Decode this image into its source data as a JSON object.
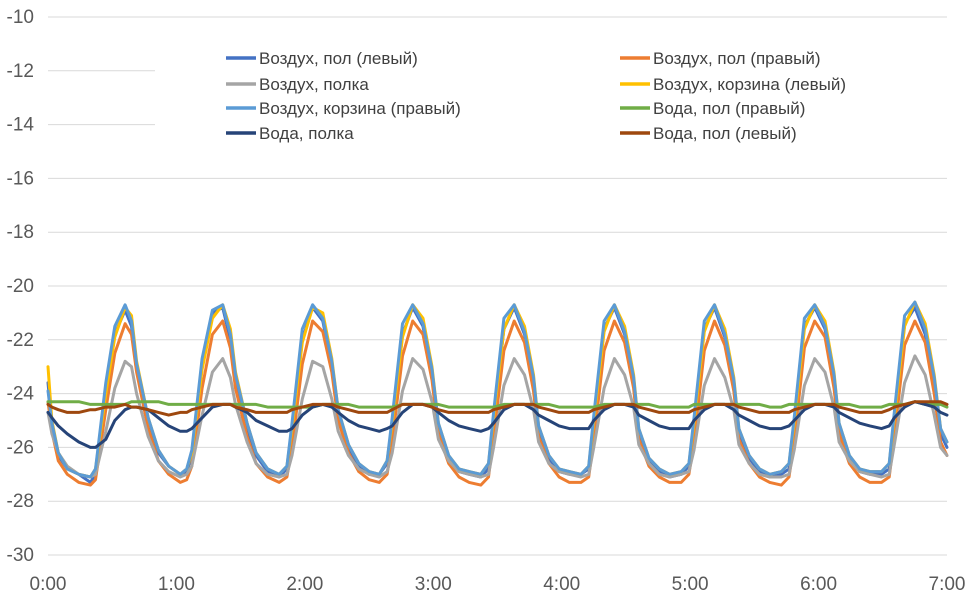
{
  "chart_data": {
    "type": "line",
    "title": "",
    "xlabel": "",
    "ylabel": "",
    "xlim": [
      0,
      7
    ],
    "ylim": [
      -30,
      -10
    ],
    "x_ticks": [
      {
        "value": 0,
        "label": "0:00"
      },
      {
        "value": 1,
        "label": "1:00"
      },
      {
        "value": 2,
        "label": "2:00"
      },
      {
        "value": 3,
        "label": "3:00"
      },
      {
        "value": 4,
        "label": "4:00"
      },
      {
        "value": 5,
        "label": "5:00"
      },
      {
        "value": 6,
        "label": "6:00"
      },
      {
        "value": 7,
        "label": "7:00"
      }
    ],
    "y_ticks": [
      {
        "value": -10,
        "label": "-10"
      },
      {
        "value": -12,
        "label": "-12"
      },
      {
        "value": -14,
        "label": "-14"
      },
      {
        "value": -16,
        "label": "-16"
      },
      {
        "value": -18,
        "label": "-18"
      },
      {
        "value": -20,
        "label": "-20"
      },
      {
        "value": -22,
        "label": "-22"
      },
      {
        "value": -24,
        "label": "-24"
      },
      {
        "value": -26,
        "label": "-26"
      },
      {
        "value": -28,
        "label": "-28"
      },
      {
        "value": -30,
        "label": "-30"
      }
    ],
    "grid": "horizontal",
    "legend_position": "top",
    "x": [
      0.0,
      0.03,
      0.08,
      0.15,
      0.24,
      0.33,
      0.37,
      0.45,
      0.52,
      0.6,
      0.65,
      0.69,
      0.78,
      0.86,
      0.94,
      1.03,
      1.08,
      1.12,
      1.2,
      1.28,
      1.36,
      1.42,
      1.46,
      1.55,
      1.62,
      1.71,
      1.8,
      1.86,
      1.9,
      1.98,
      2.06,
      2.14,
      2.21,
      2.26,
      2.34,
      2.42,
      2.5,
      2.58,
      2.64,
      2.68,
      2.76,
      2.84,
      2.92,
      2.99,
      3.04,
      3.12,
      3.2,
      3.28,
      3.37,
      3.43,
      3.47,
      3.55,
      3.63,
      3.71,
      3.78,
      3.82,
      3.9,
      3.98,
      4.06,
      4.15,
      4.21,
      4.25,
      4.33,
      4.41,
      4.49,
      4.56,
      4.6,
      4.68,
      4.76,
      4.84,
      4.93,
      4.99,
      5.03,
      5.11,
      5.19,
      5.27,
      5.34,
      5.38,
      5.46,
      5.54,
      5.62,
      5.71,
      5.77,
      5.81,
      5.89,
      5.97,
      6.05,
      6.12,
      6.16,
      6.24,
      6.32,
      6.4,
      6.49,
      6.55,
      6.59,
      6.67,
      6.75,
      6.83,
      6.9,
      6.95,
      7.0
    ],
    "series": [
      {
        "name": "Воздух, пол (левый)",
        "color": "#4472C4",
        "values": [
          -23.6,
          -25.2,
          -26.3,
          -26.8,
          -27.0,
          -27.3,
          -27.0,
          -24.0,
          -21.8,
          -20.9,
          -21.5,
          -23.0,
          -25.0,
          -26.2,
          -26.7,
          -27.0,
          -26.9,
          -26.3,
          -23.0,
          -21.0,
          -20.8,
          -22.0,
          -23.5,
          -25.3,
          -26.3,
          -26.9,
          -27.1,
          -26.8,
          -25.4,
          -22.0,
          -20.8,
          -21.3,
          -23.0,
          -24.8,
          -26.0,
          -26.7,
          -27.0,
          -27.0,
          -26.6,
          -25.2,
          -21.8,
          -20.8,
          -21.5,
          -23.3,
          -25.3,
          -26.4,
          -26.9,
          -27.0,
          -27.1,
          -26.8,
          -25.0,
          -21.6,
          -20.8,
          -21.8,
          -23.6,
          -25.4,
          -26.4,
          -26.9,
          -27.0,
          -27.0,
          -26.8,
          -25.1,
          -21.6,
          -20.8,
          -21.8,
          -23.5,
          -25.5,
          -26.5,
          -26.9,
          -27.1,
          -27.0,
          -26.7,
          -25.2,
          -21.6,
          -20.8,
          -21.9,
          -23.6,
          -25.5,
          -26.4,
          -26.9,
          -27.1,
          -27.0,
          -26.8,
          -25.2,
          -21.5,
          -20.8,
          -21.6,
          -23.5,
          -25.3,
          -26.4,
          -26.9,
          -27.0,
          -27.0,
          -26.8,
          -25.0,
          -21.4,
          -20.8,
          -21.8,
          -23.7,
          -25.5,
          -26.0
        ]
      },
      {
        "name": "Воздух, пол (правый)",
        "color": "#ED7D31",
        "values": [
          -24.3,
          -25.4,
          -26.5,
          -27.0,
          -27.3,
          -27.4,
          -27.2,
          -24.6,
          -22.5,
          -21.4,
          -21.8,
          -23.2,
          -25.3,
          -26.5,
          -27.0,
          -27.3,
          -27.2,
          -26.7,
          -23.8,
          -21.8,
          -21.3,
          -22.3,
          -23.8,
          -25.6,
          -26.6,
          -27.1,
          -27.3,
          -27.1,
          -26.0,
          -22.9,
          -21.3,
          -21.7,
          -23.2,
          -25.0,
          -26.2,
          -26.9,
          -27.2,
          -27.3,
          -27.0,
          -25.8,
          -22.6,
          -21.3,
          -21.8,
          -23.5,
          -25.5,
          -26.6,
          -27.1,
          -27.3,
          -27.4,
          -27.1,
          -25.6,
          -22.4,
          -21.3,
          -22.1,
          -23.9,
          -25.6,
          -26.6,
          -27.1,
          -27.3,
          -27.3,
          -27.1,
          -25.7,
          -22.4,
          -21.3,
          -22.1,
          -23.8,
          -25.7,
          -26.7,
          -27.1,
          -27.3,
          -27.3,
          -27.0,
          -25.8,
          -22.4,
          -21.3,
          -22.2,
          -23.9,
          -25.7,
          -26.6,
          -27.1,
          -27.3,
          -27.4,
          -27.1,
          -25.8,
          -22.3,
          -21.3,
          -21.9,
          -23.8,
          -25.5,
          -26.6,
          -27.1,
          -27.3,
          -27.3,
          -27.1,
          -25.6,
          -22.2,
          -21.3,
          -22.1,
          -24.0,
          -25.8,
          -26.3
        ]
      },
      {
        "name": "Воздух, полка",
        "color": "#A5A5A5",
        "values": [
          -24.7,
          -25.5,
          -26.2,
          -26.7,
          -27.0,
          -27.1,
          -27.0,
          -25.4,
          -23.8,
          -22.8,
          -23.0,
          -24.0,
          -25.6,
          -26.5,
          -26.9,
          -27.1,
          -27.0,
          -26.7,
          -24.8,
          -23.2,
          -22.7,
          -23.4,
          -24.4,
          -25.8,
          -26.6,
          -27.0,
          -27.1,
          -27.0,
          -26.3,
          -24.2,
          -22.8,
          -23.0,
          -24.2,
          -25.4,
          -26.3,
          -26.8,
          -27.0,
          -27.1,
          -26.9,
          -26.2,
          -23.9,
          -22.7,
          -23.1,
          -24.3,
          -25.7,
          -26.5,
          -26.9,
          -27.0,
          -27.1,
          -27.0,
          -26.0,
          -23.7,
          -22.7,
          -23.3,
          -24.6,
          -25.8,
          -26.6,
          -26.9,
          -27.0,
          -27.1,
          -27.0,
          -26.0,
          -23.8,
          -22.7,
          -23.3,
          -24.5,
          -25.9,
          -26.6,
          -27.0,
          -27.1,
          -27.0,
          -26.9,
          -26.1,
          -23.7,
          -22.7,
          -23.4,
          -24.6,
          -25.9,
          -26.6,
          -27.0,
          -27.1,
          -27.1,
          -27.0,
          -26.1,
          -23.7,
          -22.7,
          -23.2,
          -24.5,
          -25.8,
          -26.5,
          -26.9,
          -27.0,
          -27.1,
          -27.0,
          -25.9,
          -23.6,
          -22.6,
          -23.3,
          -24.8,
          -26.0,
          -26.3
        ]
      },
      {
        "name": "Воздух, корзина (левый)",
        "color": "#FFC000",
        "values": [
          -23.0,
          -25.0,
          -26.2,
          -26.8,
          -27.0,
          -27.1,
          -26.8,
          -24.0,
          -21.9,
          -20.8,
          -21.1,
          -22.8,
          -24.9,
          -26.1,
          -26.7,
          -27.0,
          -26.8,
          -26.2,
          -23.1,
          -21.2,
          -20.7,
          -21.6,
          -23.2,
          -25.1,
          -26.2,
          -26.8,
          -27.0,
          -26.7,
          -25.3,
          -22.1,
          -20.8,
          -21.0,
          -22.7,
          -24.6,
          -25.9,
          -26.6,
          -26.9,
          -27.0,
          -26.5,
          -25.1,
          -21.9,
          -20.7,
          -21.2,
          -23.0,
          -25.1,
          -26.3,
          -26.8,
          -26.9,
          -27.0,
          -26.6,
          -24.9,
          -21.6,
          -20.7,
          -21.5,
          -23.3,
          -25.2,
          -26.3,
          -26.8,
          -26.9,
          -27.0,
          -26.7,
          -25.0,
          -21.7,
          -20.7,
          -21.5,
          -23.3,
          -25.3,
          -26.4,
          -26.8,
          -27.0,
          -26.9,
          -26.6,
          -25.1,
          -21.7,
          -20.7,
          -21.6,
          -23.4,
          -25.3,
          -26.3,
          -26.8,
          -27.0,
          -26.9,
          -26.6,
          -25.1,
          -21.6,
          -20.7,
          -21.3,
          -23.2,
          -25.1,
          -26.3,
          -26.8,
          -26.9,
          -26.9,
          -26.6,
          -24.9,
          -21.5,
          -20.6,
          -21.4,
          -23.3,
          -25.3,
          -25.8
        ]
      },
      {
        "name": "Воздух, корзина (правый)",
        "color": "#5B9BD5",
        "values": [
          -23.9,
          -25.1,
          -26.2,
          -26.8,
          -27.0,
          -27.1,
          -26.8,
          -23.6,
          -21.5,
          -20.7,
          -21.3,
          -22.9,
          -24.9,
          -26.1,
          -26.7,
          -27.0,
          -26.8,
          -26.1,
          -22.7,
          -20.9,
          -20.7,
          -21.8,
          -23.3,
          -25.1,
          -26.2,
          -26.8,
          -27.0,
          -26.7,
          -25.1,
          -21.6,
          -20.7,
          -21.2,
          -22.8,
          -24.6,
          -25.9,
          -26.6,
          -26.9,
          -27.0,
          -26.5,
          -24.9,
          -21.4,
          -20.7,
          -21.4,
          -23.1,
          -25.1,
          -26.3,
          -26.8,
          -26.9,
          -27.0,
          -26.6,
          -24.7,
          -21.2,
          -20.7,
          -21.7,
          -23.4,
          -25.2,
          -26.3,
          -26.8,
          -26.9,
          -27.0,
          -26.7,
          -24.8,
          -21.3,
          -20.7,
          -21.7,
          -23.4,
          -25.3,
          -26.4,
          -26.8,
          -27.0,
          -26.9,
          -26.6,
          -24.9,
          -21.3,
          -20.7,
          -21.8,
          -23.5,
          -25.3,
          -26.3,
          -26.8,
          -27.0,
          -26.9,
          -26.6,
          -24.9,
          -21.2,
          -20.7,
          -21.5,
          -23.3,
          -25.1,
          -26.3,
          -26.8,
          -26.9,
          -26.9,
          -26.6,
          -24.7,
          -21.1,
          -20.6,
          -21.6,
          -23.4,
          -25.3,
          -25.8
        ]
      },
      {
        "name": "Вода, пол (правый)",
        "color": "#70AD47",
        "values": [
          -24.3,
          -24.3,
          -24.3,
          -24.3,
          -24.3,
          -24.4,
          -24.4,
          -24.4,
          -24.4,
          -24.4,
          -24.3,
          -24.3,
          -24.3,
          -24.3,
          -24.4,
          -24.4,
          -24.4,
          -24.4,
          -24.4,
          -24.4,
          -24.4,
          -24.4,
          -24.4,
          -24.4,
          -24.4,
          -24.5,
          -24.5,
          -24.5,
          -24.5,
          -24.5,
          -24.5,
          -24.4,
          -24.4,
          -24.4,
          -24.4,
          -24.5,
          -24.5,
          -24.5,
          -24.5,
          -24.5,
          -24.4,
          -24.4,
          -24.4,
          -24.4,
          -24.4,
          -24.5,
          -24.5,
          -24.5,
          -24.5,
          -24.5,
          -24.5,
          -24.4,
          -24.4,
          -24.4,
          -24.4,
          -24.4,
          -24.4,
          -24.5,
          -24.5,
          -24.5,
          -24.5,
          -24.5,
          -24.4,
          -24.4,
          -24.4,
          -24.4,
          -24.4,
          -24.4,
          -24.5,
          -24.5,
          -24.5,
          -24.5,
          -24.4,
          -24.4,
          -24.4,
          -24.4,
          -24.4,
          -24.4,
          -24.4,
          -24.4,
          -24.5,
          -24.5,
          -24.4,
          -24.4,
          -24.4,
          -24.4,
          -24.4,
          -24.4,
          -24.4,
          -24.4,
          -24.5,
          -24.5,
          -24.5,
          -24.4,
          -24.4,
          -24.4,
          -24.3,
          -24.4,
          -24.4,
          -24.4,
          -24.5
        ]
      },
      {
        "name": "Вода, полка",
        "color": "#264478",
        "values": [
          -24.7,
          -24.9,
          -25.2,
          -25.5,
          -25.8,
          -26.0,
          -26.0,
          -25.7,
          -25.0,
          -24.6,
          -24.5,
          -24.5,
          -24.6,
          -24.9,
          -25.2,
          -25.4,
          -25.4,
          -25.3,
          -24.9,
          -24.5,
          -24.4,
          -24.4,
          -24.5,
          -24.7,
          -25.0,
          -25.2,
          -25.4,
          -25.4,
          -25.3,
          -24.8,
          -24.5,
          -24.4,
          -24.5,
          -24.7,
          -25.0,
          -25.2,
          -25.3,
          -25.4,
          -25.3,
          -25.2,
          -24.7,
          -24.4,
          -24.4,
          -24.5,
          -24.7,
          -25.0,
          -25.2,
          -25.3,
          -25.4,
          -25.3,
          -25.1,
          -24.6,
          -24.4,
          -24.4,
          -24.6,
          -24.8,
          -25.0,
          -25.2,
          -25.3,
          -25.3,
          -25.3,
          -25.0,
          -24.6,
          -24.4,
          -24.4,
          -24.5,
          -24.8,
          -25.0,
          -25.2,
          -25.3,
          -25.3,
          -25.3,
          -25.0,
          -24.6,
          -24.4,
          -24.4,
          -24.6,
          -24.8,
          -25.0,
          -25.2,
          -25.3,
          -25.3,
          -25.2,
          -25.0,
          -24.6,
          -24.4,
          -24.4,
          -24.5,
          -24.7,
          -24.9,
          -25.1,
          -25.2,
          -25.3,
          -25.2,
          -24.9,
          -24.5,
          -24.3,
          -24.4,
          -24.5,
          -24.7,
          -24.8
        ]
      },
      {
        "name": "Вода, пол (левый)",
        "color": "#9E480E",
        "values": [
          -24.4,
          -24.5,
          -24.6,
          -24.7,
          -24.7,
          -24.6,
          -24.6,
          -24.5,
          -24.5,
          -24.4,
          -24.5,
          -24.5,
          -24.6,
          -24.7,
          -24.8,
          -24.7,
          -24.7,
          -24.6,
          -24.5,
          -24.4,
          -24.4,
          -24.4,
          -24.5,
          -24.6,
          -24.7,
          -24.7,
          -24.7,
          -24.7,
          -24.6,
          -24.5,
          -24.4,
          -24.4,
          -24.4,
          -24.5,
          -24.6,
          -24.7,
          -24.7,
          -24.7,
          -24.7,
          -24.6,
          -24.4,
          -24.4,
          -24.4,
          -24.5,
          -24.6,
          -24.7,
          -24.7,
          -24.7,
          -24.7,
          -24.7,
          -24.6,
          -24.5,
          -24.4,
          -24.4,
          -24.4,
          -24.5,
          -24.6,
          -24.7,
          -24.7,
          -24.7,
          -24.7,
          -24.6,
          -24.5,
          -24.4,
          -24.4,
          -24.4,
          -24.5,
          -24.6,
          -24.7,
          -24.7,
          -24.7,
          -24.7,
          -24.6,
          -24.5,
          -24.4,
          -24.4,
          -24.4,
          -24.5,
          -24.6,
          -24.7,
          -24.7,
          -24.7,
          -24.7,
          -24.6,
          -24.5,
          -24.4,
          -24.4,
          -24.4,
          -24.5,
          -24.6,
          -24.7,
          -24.7,
          -24.7,
          -24.6,
          -24.5,
          -24.4,
          -24.3,
          -24.3,
          -24.3,
          -24.3,
          -24.4
        ]
      }
    ]
  }
}
